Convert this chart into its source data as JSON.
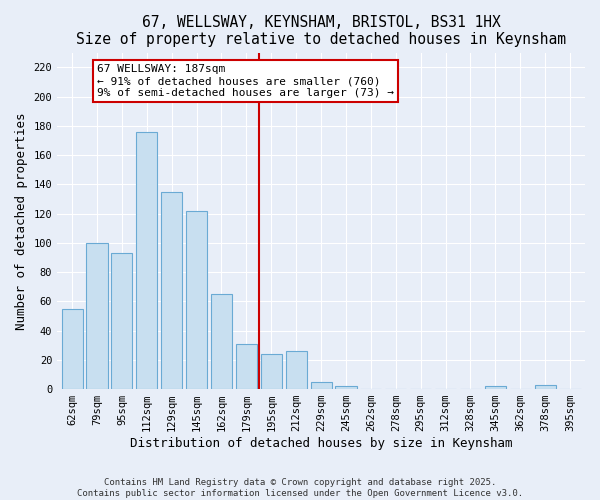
{
  "title": "67, WELLSWAY, KEYNSHAM, BRISTOL, BS31 1HX",
  "subtitle": "Size of property relative to detached houses in Keynsham",
  "xlabel": "Distribution of detached houses by size in Keynsham",
  "ylabel": "Number of detached properties",
  "bar_labels": [
    "62sqm",
    "79sqm",
    "95sqm",
    "112sqm",
    "129sqm",
    "145sqm",
    "162sqm",
    "179sqm",
    "195sqm",
    "212sqm",
    "229sqm",
    "245sqm",
    "262sqm",
    "278sqm",
    "295sqm",
    "312sqm",
    "328sqm",
    "345sqm",
    "362sqm",
    "378sqm",
    "395sqm"
  ],
  "bar_heights": [
    55,
    100,
    93,
    176,
    135,
    122,
    65,
    31,
    24,
    26,
    5,
    2,
    0,
    0,
    0,
    0,
    0,
    2,
    0,
    3,
    0
  ],
  "bar_color": "#c8dff0",
  "bar_edge_color": "#6aaad4",
  "ylim": [
    0,
    230
  ],
  "yticks": [
    0,
    20,
    40,
    60,
    80,
    100,
    120,
    140,
    160,
    180,
    200,
    220
  ],
  "vline_x": 7.5,
  "vline_color": "#cc0000",
  "annotation_title": "67 WELLSWAY: 187sqm",
  "annotation_line1": "← 91% of detached houses are smaller (760)",
  "annotation_line2": "9% of semi-detached houses are larger (73) →",
  "footer1": "Contains HM Land Registry data © Crown copyright and database right 2025.",
  "footer2": "Contains public sector information licensed under the Open Government Licence v3.0.",
  "bg_color": "#e8eef8",
  "plot_bg_color": "#e8eef8",
  "grid_color": "#ffffff",
  "title_fontsize": 10.5,
  "axis_label_fontsize": 9,
  "tick_fontsize": 7.5
}
